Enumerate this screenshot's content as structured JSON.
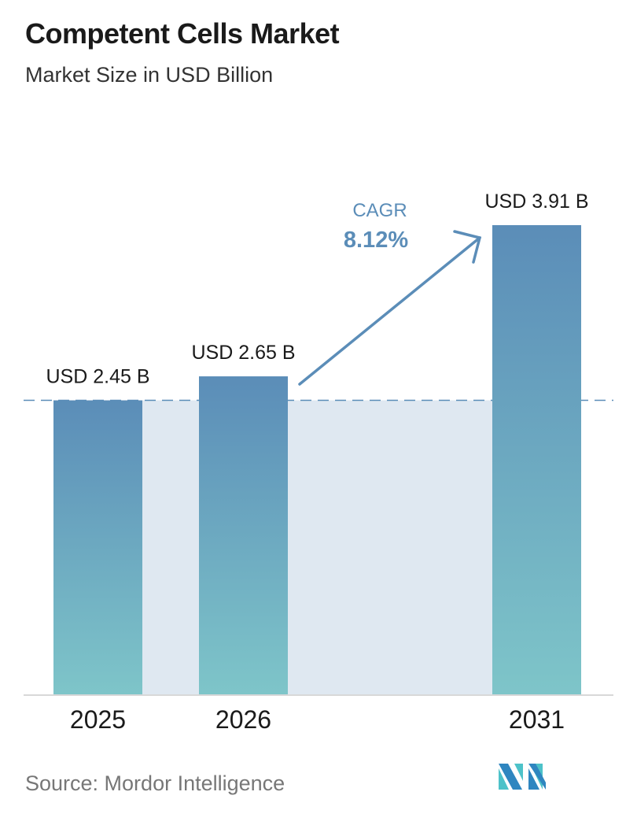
{
  "title": "Competent Cells Market",
  "subtitle": "Market Size in USD Billion",
  "source": "Source:  Mordor Intelligence",
  "logo_text": "Mordor Intelligence",
  "chart_data": {
    "type": "bar",
    "categories": [
      "2025",
      "2026",
      "2031"
    ],
    "values": [
      2.45,
      2.65,
      3.91
    ],
    "data_labels": [
      "USD 2.45 B",
      "USD 2.65 B",
      "USD 3.91 B"
    ],
    "ylim": [
      0,
      3.91
    ],
    "grid": false,
    "reference_line": 2.45,
    "annotation": {
      "label": "CAGR",
      "value": "8.12%"
    },
    "colors": {
      "bar_top": "#5b8db8",
      "bar_bottom": "#7ec5c9",
      "shade": "#dfe8f1",
      "accent": "#5b8db8"
    }
  }
}
